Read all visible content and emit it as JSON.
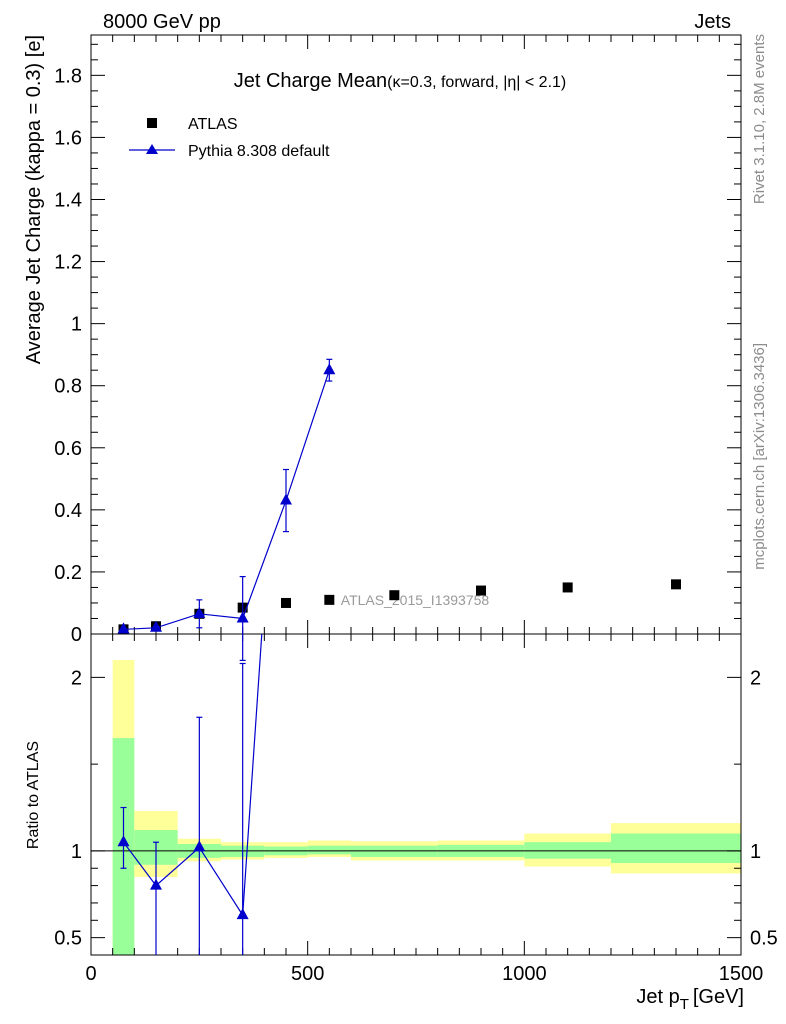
{
  "header": {
    "left": "8000 GeV pp",
    "right": "Jets"
  },
  "side_labels": {
    "rivet": "Rivet 3.1.10,  2.8M events",
    "mcplots": "mcplots.cern.ch [arXiv:1306.3436]"
  },
  "watermark": "ATLAS_2015_I1393758",
  "chart_data": {
    "type": "scatter",
    "title": "Jet Charge Mean",
    "subtitle": "(κ=0.3, forward, |η| < 2.1)",
    "xlabel": "Jet p_T [GeV]",
    "xlabel_main": "Jet p",
    "xlabel_sub": "T",
    "xlabel_unit": "[GeV]",
    "ylabel": "Average Jet Charge (kappa = 0.3) [e]",
    "xlim": [
      0,
      1500
    ],
    "ylim": [
      0,
      1.93
    ],
    "x_ticks": [
      "0",
      "500",
      "1000",
      "1500"
    ],
    "y_ticks": [
      "0",
      "0.2",
      "0.4",
      "0.6",
      "0.8",
      "1",
      "1.2",
      "1.4",
      "1.6",
      "1.8"
    ],
    "legend_position": "top-left",
    "series": [
      {
        "name": "ATLAS",
        "color": "#000000",
        "marker": "square",
        "x": [
          75,
          150,
          250,
          350,
          450,
          550,
          700,
          900,
          1100,
          1350
        ],
        "y": [
          0.015,
          0.025,
          0.065,
          0.085,
          0.1,
          0.11,
          0.125,
          0.14,
          0.15,
          0.16
        ]
      },
      {
        "name": "Pythia 8.308 default",
        "color": "#0000cc",
        "marker": "triangle",
        "x": [
          75,
          150,
          250,
          350,
          450,
          550
        ],
        "y": [
          0.015,
          0.02,
          0.065,
          0.05,
          0.43,
          0.85
        ],
        "yerr": [
          0.005,
          0.005,
          0.045,
          0.135,
          0.1,
          0.035
        ]
      }
    ],
    "ratio": {
      "ylabel": "Ratio to ATLAS",
      "ylim": [
        0.4,
        2.25
      ],
      "y_ticks": [
        "0.5",
        "1",
        "2"
      ],
      "bands": [
        {
          "xlo": 50,
          "xhi": 100,
          "yellow": [
            0.38,
            2.1
          ],
          "green": [
            0.4,
            1.65
          ]
        },
        {
          "xlo": 100,
          "xhi": 200,
          "yellow": [
            0.85,
            1.23
          ],
          "green": [
            0.92,
            1.12
          ]
        },
        {
          "xlo": 200,
          "xhi": 300,
          "yellow": [
            0.94,
            1.07
          ],
          "green": [
            0.96,
            1.04
          ]
        },
        {
          "xlo": 300,
          "xhi": 400,
          "yellow": [
            0.95,
            1.05
          ],
          "green": [
            0.965,
            1.03
          ]
        },
        {
          "xlo": 400,
          "xhi": 500,
          "yellow": [
            0.96,
            1.05
          ],
          "green": [
            0.975,
            1.025
          ]
        },
        {
          "xlo": 500,
          "xhi": 600,
          "yellow": [
            0.965,
            1.06
          ],
          "green": [
            0.98,
            1.03
          ]
        },
        {
          "xlo": 600,
          "xhi": 800,
          "yellow": [
            0.945,
            1.055
          ],
          "green": [
            0.965,
            1.03
          ]
        },
        {
          "xlo": 800,
          "xhi": 1000,
          "yellow": [
            0.945,
            1.06
          ],
          "green": [
            0.965,
            1.035
          ]
        },
        {
          "xlo": 1000,
          "xhi": 1200,
          "yellow": [
            0.91,
            1.1
          ],
          "green": [
            0.955,
            1.05
          ]
        },
        {
          "xlo": 1200,
          "xhi": 1500,
          "yellow": [
            0.87,
            1.16
          ],
          "green": [
            0.93,
            1.1
          ]
        }
      ],
      "mc_x": [
        75,
        150,
        250,
        350,
        450
      ],
      "mc_y": [
        1.05,
        0.8,
        1.02,
        0.63,
        4.3
      ],
      "mc_err_lo": [
        0.15,
        0.4,
        0.7,
        0.3,
        0.0
      ],
      "mc_err_hi": [
        0.2,
        0.25,
        0.75,
        1.45,
        0.0
      ]
    }
  }
}
